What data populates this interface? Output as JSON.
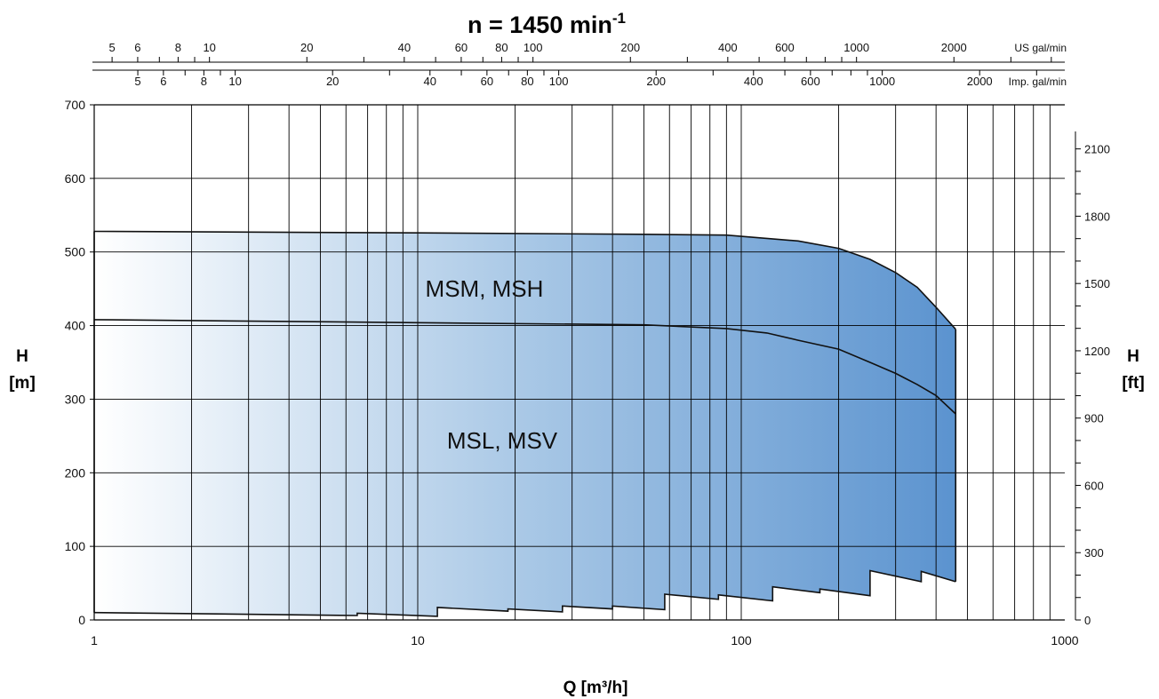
{
  "chart_data": {
    "type": "area",
    "title": "n = 1450 min",
    "title_superscript": "-1",
    "xlabel": "Q [m³/h]",
    "ylabel_line1": "H",
    "ylabel_line2": "[m]",
    "y2label_line1": "H",
    "y2label_line2": "[ft]",
    "x_scale": "log",
    "xlim": [
      1,
      1000
    ],
    "ylim": [
      0,
      700
    ],
    "grid": true,
    "x_tick_labels": [
      "1",
      "10",
      "100",
      "1000"
    ],
    "y_tick_labels": [
      "0",
      "100",
      "200",
      "300",
      "400",
      "500",
      "600",
      "700"
    ],
    "y2_tick_labels": [
      "0",
      "300",
      "600",
      "900",
      "1200",
      "1500",
      "1800",
      "2100"
    ],
    "top_axis_us": {
      "unit": "US gal/min",
      "labels": [
        "5",
        "6",
        "8",
        "10",
        "20",
        "40",
        "60",
        "80",
        "100",
        "200",
        "400",
        "600",
        "1000",
        "2000"
      ]
    },
    "top_axis_imp": {
      "unit": "Imp. gal/min",
      "labels": [
        "5",
        "6",
        "8",
        "10",
        "20",
        "40",
        "60",
        "80",
        "100",
        "200",
        "400",
        "600",
        "1000",
        "2000"
      ]
    },
    "fill_colors": {
      "left": "#ffffff",
      "mid": "#a9c8e6",
      "right": "#5b93cf"
    },
    "series": [
      {
        "name": "MSM, MSH",
        "x": [
          1,
          10,
          50,
          90,
          150,
          200,
          250,
          300,
          350,
          400,
          460
        ],
        "y": [
          528,
          526,
          524,
          523,
          515,
          505,
          490,
          472,
          452,
          425,
          395
        ]
      },
      {
        "name": "MSL, MSV",
        "x": [
          1,
          10,
          50,
          90,
          120,
          150,
          200,
          250,
          300,
          350,
          400,
          460
        ],
        "y": [
          408,
          404,
          401,
          396,
          390,
          380,
          368,
          350,
          335,
          320,
          305,
          280
        ]
      },
      {
        "name": "",
        "x": [
          1,
          6.5,
          6.5,
          11.5,
          11.5,
          19,
          19,
          28,
          28,
          40,
          40,
          58,
          58,
          85,
          85,
          125,
          125,
          175,
          175,
          250,
          250,
          360,
          360,
          460
        ],
        "y": [
          10,
          6,
          9,
          5,
          17,
          12,
          15,
          11,
          19,
          15,
          19,
          14,
          35,
          28,
          34,
          26,
          45,
          37,
          42,
          33,
          67,
          52,
          66,
          52
        ]
      }
    ]
  }
}
